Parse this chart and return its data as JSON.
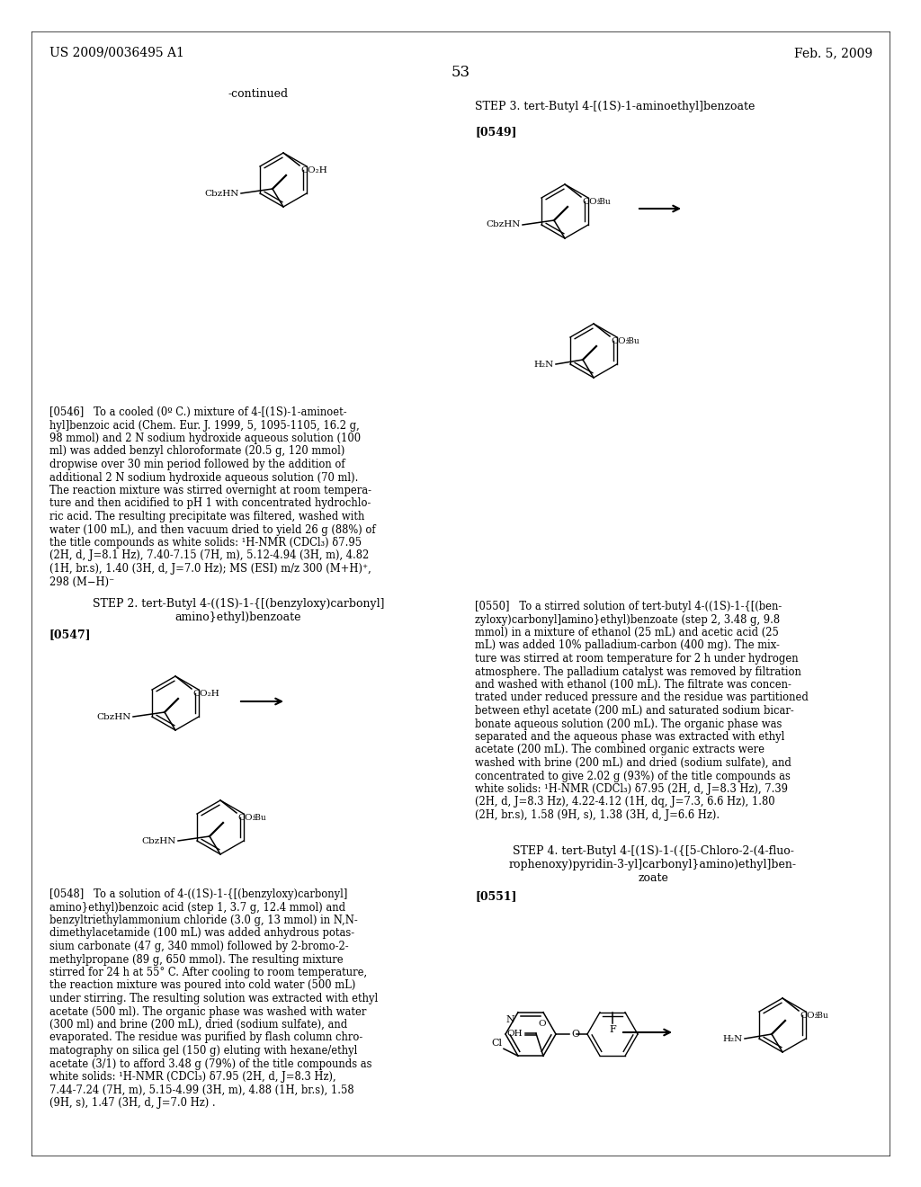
{
  "page_header_left": "US 2009/0036495 A1",
  "page_header_right": "Feb. 5, 2009",
  "page_number": "53",
  "background_color": "#ffffff",
  "figsize": [
    10.24,
    13.2
  ],
  "dpi": 100
}
